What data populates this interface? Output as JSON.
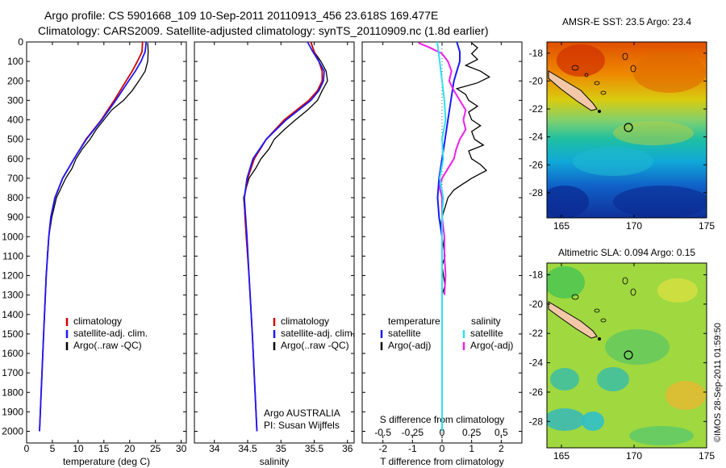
{
  "title_line1": "Argo profile: CS 5901668_109 10-Sep-2011 20110913_456 23.618S 169.477E",
  "title_line2": "Climatology: CARS2009. Satellite-adjusted climatology: synTS_20110909.nc (1.8d earlier)",
  "credit": "©IMOS 28-Sep-2011 01:59:50",
  "colors": {
    "climatology": "#d40000",
    "satellite": "#1a1aff",
    "argo": "#000000",
    "salinity_sat": "#30e0ee",
    "salinity_argo": "#ee20ee"
  },
  "chart_data": [
    {
      "id": "temperature",
      "type": "line",
      "xlabel": "temperature (deg C)",
      "ylabel": "",
      "xlim": [
        0,
        31
      ],
      "ylim": [
        0,
        2060
      ],
      "xticks": [
        "0",
        "5",
        "10",
        "15",
        "20",
        "25",
        "30"
      ],
      "yticks": [
        "0",
        "100",
        "200",
        "300",
        "400",
        "500",
        "600",
        "700",
        "800",
        "900",
        "1000",
        "1100",
        "1200",
        "1300",
        "1400",
        "1500",
        "1600",
        "1700",
        "1800",
        "1900",
        "2000"
      ],
      "legend": [
        "climatology",
        "satellite-adj. clim.",
        "Argo(..raw -QC)"
      ],
      "series": [
        {
          "name": "climatology",
          "depth": [
            0,
            50,
            100,
            150,
            200,
            300,
            400,
            500,
            600,
            700,
            800,
            900,
            1000,
            1200,
            1500,
            2000
          ],
          "values": [
            22.5,
            22.4,
            21.5,
            20.5,
            19.3,
            17.0,
            14.5,
            11.5,
            9.2,
            7.0,
            5.5,
            4.7,
            4.3,
            3.8,
            3.3,
            2.5
          ]
        },
        {
          "name": "satellite-adj. clim.",
          "depth": [
            0,
            50,
            100,
            150,
            200,
            300,
            400,
            500,
            600,
            700,
            800,
            900,
            1000,
            1200,
            1500,
            2000
          ],
          "values": [
            23.2,
            23.0,
            22.2,
            21.1,
            19.8,
            17.3,
            14.6,
            11.6,
            9.2,
            7.0,
            5.5,
            4.7,
            4.3,
            3.8,
            3.3,
            2.5
          ]
        },
        {
          "name": "Argo(..raw -QC)",
          "depth": [
            5,
            50,
            100,
            150,
            200,
            250,
            300,
            350,
            400,
            450,
            500,
            550,
            600,
            650,
            700,
            800,
            900,
            1000,
            1100
          ],
          "values": [
            23.5,
            23.6,
            23.5,
            23.0,
            21.8,
            20.5,
            18.8,
            16.5,
            15.0,
            13.5,
            12.3,
            10.8,
            9.6,
            8.8,
            7.6,
            5.8,
            4.9,
            4.3,
            4.0
          ]
        }
      ]
    },
    {
      "id": "salinity",
      "type": "line",
      "xlabel": "salinity",
      "ylabel": "",
      "xlim": [
        33.7,
        36.1
      ],
      "ylim": [
        0,
        2060
      ],
      "xticks": [
        "34",
        "34.5",
        "35",
        "35.5",
        "36"
      ],
      "legend": [
        "climatology",
        "satellite-adj. clim.",
        "Argo(..raw -QC)"
      ],
      "annotation": [
        "Argo AUSTRALIA",
        "PI: Susan Wijffels"
      ],
      "series": [
        {
          "name": "climatology",
          "depth": [
            0,
            50,
            100,
            150,
            200,
            250,
            300,
            400,
            500,
            600,
            700,
            800,
            900,
            1000,
            1200,
            1500,
            2000
          ],
          "values": [
            35.45,
            35.5,
            35.57,
            35.62,
            35.62,
            35.55,
            35.42,
            35.05,
            34.78,
            34.6,
            34.5,
            34.45,
            34.46,
            34.48,
            34.52,
            34.57,
            34.64
          ]
        },
        {
          "name": "satellite-adj. clim.",
          "depth": [
            0,
            50,
            100,
            150,
            200,
            250,
            300,
            400,
            500,
            600,
            700,
            800,
            900,
            1000,
            1200,
            1500,
            2000
          ],
          "values": [
            35.4,
            35.48,
            35.57,
            35.65,
            35.64,
            35.57,
            35.45,
            35.08,
            34.78,
            34.58,
            34.49,
            34.45,
            34.47,
            34.49,
            34.52,
            34.57,
            34.64
          ]
        },
        {
          "name": "Argo(..raw -QC)",
          "depth": [
            5,
            50,
            100,
            150,
            200,
            250,
            300,
            350,
            400,
            450,
            500,
            550,
            600,
            650,
            700,
            750,
            800,
            850,
            900,
            1000,
            1100,
            1200
          ],
          "values": [
            35.45,
            35.5,
            35.6,
            35.68,
            35.7,
            35.62,
            35.55,
            35.4,
            35.22,
            35.05,
            34.9,
            34.82,
            34.7,
            34.62,
            34.52,
            34.48,
            34.44,
            34.45,
            34.46,
            34.48,
            34.5,
            34.52
          ]
        }
      ]
    },
    {
      "id": "difference",
      "type": "line",
      "xlabel": "T difference from climatology",
      "xlabel2": "S difference from climatology",
      "xlim": [
        -2.7,
        2.7
      ],
      "ylim": [
        0,
        2060
      ],
      "xticks_T": [
        "-2",
        "-1",
        "0",
        "1",
        "2"
      ],
      "xticks_S": [
        "-0.5",
        "-0.25",
        "0",
        "0.25",
        "0.5"
      ],
      "legend_T_title": "temperature",
      "legend_S_title": "salinity",
      "legend_T": [
        "satellite",
        "Argo(-adj)"
      ],
      "legend_S": [
        "satellite",
        "Argo(-adj)"
      ],
      "series": [
        {
          "name": "T satellite",
          "depth": [
            0,
            50,
            100,
            150,
            200,
            300,
            400,
            500,
            600,
            700,
            800,
            900,
            1000,
            1100,
            2000
          ],
          "values": [
            0.5,
            0.6,
            0.6,
            0.5,
            0.4,
            0.3,
            0.2,
            0.1,
            0.0,
            -0.1,
            -0.15,
            -0.1,
            0.0,
            0.0,
            0.0
          ]
        },
        {
          "name": "T Argo(-adj)",
          "depth": [
            5,
            30,
            60,
            90,
            120,
            150,
            180,
            210,
            240,
            270,
            300,
            330,
            360,
            400,
            430,
            460,
            500,
            530,
            560,
            600,
            630,
            660,
            700,
            730,
            760,
            800,
            850,
            900,
            950,
            1000,
            1050,
            1100,
            1150,
            1200,
            1250,
            1300
          ],
          "values": [
            1.0,
            1.2,
            1.0,
            1.2,
            0.8,
            1.3,
            1.6,
            1.2,
            0.5,
            0.8,
            0.9,
            1.2,
            0.9,
            1.0,
            1.3,
            1.0,
            1.1,
            1.4,
            0.9,
            1.0,
            1.3,
            1.5,
            1.0,
            0.7,
            0.4,
            0.2,
            0.1,
            0.0,
            -0.05,
            0.0,
            0.05,
            0.1,
            0.0,
            0.05,
            0.1,
            0.0
          ]
        },
        {
          "name": "S satellite",
          "depth": [
            0,
            50,
            100,
            150,
            200,
            300,
            400,
            500,
            600,
            700,
            800,
            900,
            1000,
            1200,
            1500,
            2000
          ],
          "values": [
            -0.04,
            -0.03,
            -0.02,
            -0.01,
            0.0,
            0.02,
            0.03,
            0.0,
            0.01,
            -0.02,
            0.01,
            0.0,
            0.0,
            0.0,
            0.0,
            0.0
          ]
        },
        {
          "name": "S Argo(-adj)",
          "depth": [
            5,
            30,
            60,
            100,
            150,
            200,
            250,
            300,
            350,
            400,
            450,
            500,
            550,
            600,
            650,
            700,
            750,
            800,
            900,
            1000,
            1100,
            1200,
            1300
          ],
          "values": [
            -0.2,
            -0.1,
            0.0,
            0.05,
            0.08,
            0.06,
            0.1,
            0.15,
            0.2,
            0.18,
            0.2,
            0.15,
            0.12,
            0.1,
            0.05,
            0.0,
            -0.02,
            0.0,
            0.0,
            0.02,
            0.02,
            0.03,
            0.02
          ]
        }
      ]
    },
    {
      "id": "sst_map",
      "type": "heatmap",
      "title": "AMSR-E SST: 23.5 Argo: 23.4",
      "xlim": [
        164,
        175
      ],
      "ylim": [
        -29.8,
        -17.2
      ],
      "xticks": [
        "165",
        "170",
        "175"
      ],
      "yticks": [
        "-18",
        "-20",
        "-22",
        "-24",
        "-26",
        "-28"
      ],
      "argo_position": [
        169.477,
        -23.618
      ]
    },
    {
      "id": "sla_map",
      "type": "heatmap",
      "title": "Altimetric SLA: 0.094 Argo: 0.15",
      "xlim": [
        164,
        175
      ],
      "ylim": [
        -29.8,
        -17.2
      ],
      "xticks": [
        "165",
        "170",
        "175"
      ],
      "yticks": [
        "-18",
        "-20",
        "-22",
        "-24",
        "-26",
        "-28"
      ],
      "argo_position": [
        169.477,
        -23.618
      ]
    }
  ]
}
